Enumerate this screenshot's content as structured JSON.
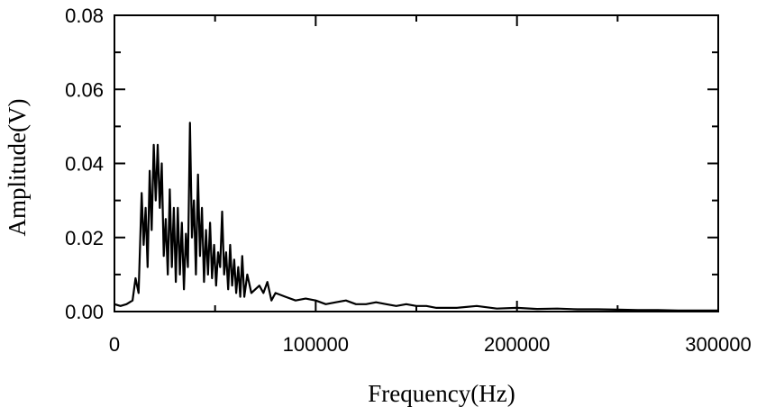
{
  "chart_data": {
    "type": "line",
    "title": "",
    "xlabel": "Frequency(Hz)",
    "ylabel": "Amplitude(V)",
    "xlim": [
      0,
      300000
    ],
    "ylim": [
      0,
      0.08
    ],
    "x_ticks": [
      0,
      100000,
      200000,
      300000
    ],
    "x_tick_labels": [
      "0",
      "100000",
      "200000",
      "300000"
    ],
    "y_ticks": [
      0,
      0.02,
      0.04,
      0.06,
      0.08
    ],
    "y_tick_labels": [
      "0.00",
      "0.02",
      "0.04",
      "0.06",
      "0.08"
    ],
    "grid": false,
    "series_color": "#000000",
    "series": [
      {
        "x": [
          0,
          3000,
          6000,
          9000,
          10500,
          12000,
          13500,
          14500,
          15500,
          16500,
          17500,
          18500,
          19500,
          20500,
          21500,
          22500,
          23500,
          24500,
          25500,
          26500,
          27500,
          28500,
          29500,
          30500,
          31500,
          32500,
          33500,
          34500,
          35500,
          36500,
          37500,
          38500,
          39500,
          40500,
          41500,
          42500,
          43500,
          44500,
          45500,
          46500,
          47500,
          48500,
          49500,
          50500,
          51500,
          52500,
          53500,
          54500,
          55500,
          56500,
          57500,
          58500,
          59500,
          60500,
          61500,
          62500,
          63500,
          64500,
          66000,
          68000,
          70000,
          72000,
          74000,
          76000,
          78000,
          80000,
          85000,
          90000,
          95000,
          100000,
          105000,
          110000,
          115000,
          120000,
          125000,
          130000,
          135000,
          140000,
          145000,
          150000,
          155000,
          160000,
          170000,
          180000,
          190000,
          200000,
          210000,
          220000,
          230000,
          240000,
          250000,
          260000,
          270000,
          280000,
          290000,
          300000
        ],
        "y": [
          0.002,
          0.0015,
          0.002,
          0.003,
          0.009,
          0.005,
          0.032,
          0.018,
          0.028,
          0.012,
          0.038,
          0.022,
          0.045,
          0.03,
          0.045,
          0.028,
          0.04,
          0.015,
          0.025,
          0.01,
          0.033,
          0.012,
          0.028,
          0.008,
          0.028,
          0.01,
          0.024,
          0.006,
          0.021,
          0.012,
          0.051,
          0.02,
          0.03,
          0.01,
          0.037,
          0.015,
          0.028,
          0.008,
          0.022,
          0.01,
          0.024,
          0.009,
          0.018,
          0.007,
          0.016,
          0.012,
          0.027,
          0.01,
          0.016,
          0.006,
          0.018,
          0.007,
          0.014,
          0.005,
          0.012,
          0.004,
          0.015,
          0.004,
          0.01,
          0.005,
          0.006,
          0.007,
          0.005,
          0.008,
          0.003,
          0.005,
          0.004,
          0.003,
          0.0035,
          0.003,
          0.002,
          0.0025,
          0.003,
          0.002,
          0.002,
          0.0025,
          0.002,
          0.0015,
          0.002,
          0.0015,
          0.0015,
          0.001,
          0.001,
          0.0015,
          0.0008,
          0.001,
          0.0007,
          0.0008,
          0.0006,
          0.0006,
          0.0005,
          0.0004,
          0.0004,
          0.0003,
          0.0003,
          0.0003
        ]
      }
    ]
  }
}
